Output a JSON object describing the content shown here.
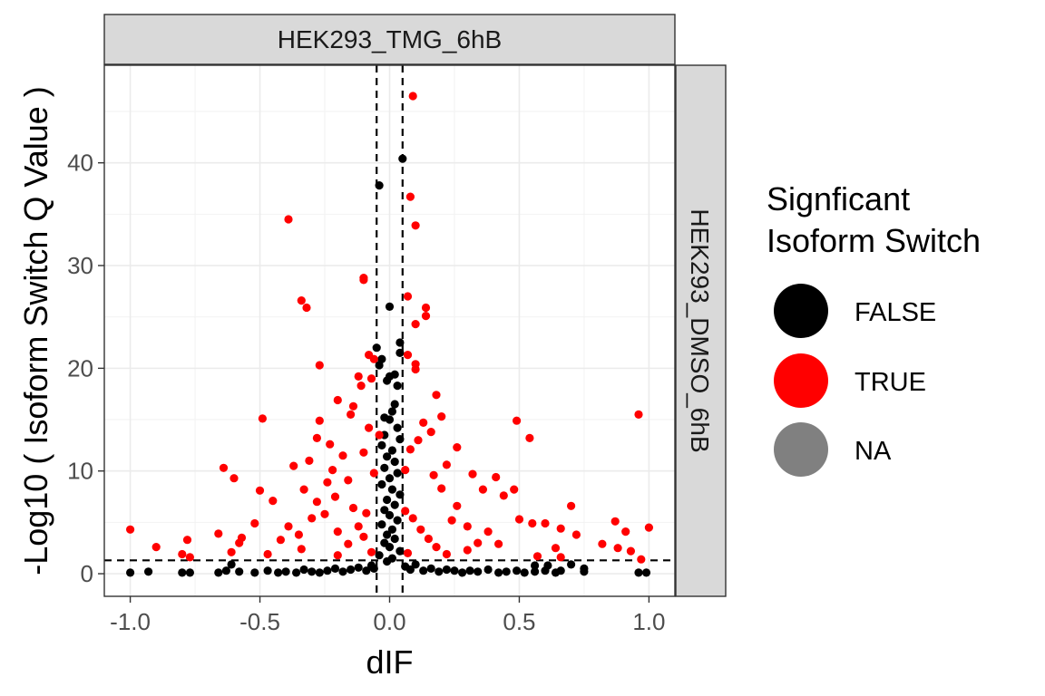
{
  "chart_data": {
    "type": "scatter",
    "facet_top": "HEK293_TMG_6hB",
    "facet_right": "HEK293_DMSO_6hB",
    "xlabel": "dIF",
    "ylabel": "-Log10 ( Isoform Switch Q Value )",
    "xlim": [
      -1.1,
      1.1
    ],
    "ylim": [
      -2.2,
      49.5
    ],
    "x_ticks": [
      -1.0,
      -0.5,
      0.0,
      0.5,
      1.0
    ],
    "x_tick_labels": [
      "-1.0",
      "-0.5",
      "0.0",
      "0.5",
      "1.0"
    ],
    "y_ticks": [
      0,
      10,
      20,
      30,
      40
    ],
    "y_tick_labels": [
      "0",
      "10",
      "20",
      "30",
      "40"
    ],
    "grid": true,
    "threshold_lines": {
      "vertical": [
        -0.05,
        0.05
      ],
      "horizontal": 1.3
    },
    "legend": {
      "title_lines": [
        "Signficant",
        "Isoform Switch"
      ],
      "position": "right",
      "entries": [
        {
          "label": "FALSE",
          "color": "#000000"
        },
        {
          "label": "TRUE",
          "color": "#ff0000"
        },
        {
          "label": "NA",
          "color": "#808080"
        }
      ]
    },
    "series": [
      {
        "name": "FALSE",
        "color": "#000000",
        "points": [
          [
            0.05,
            40.4
          ],
          [
            -0.04,
            37.8
          ],
          [
            0.0,
            26.0
          ],
          [
            0.04,
            22.5
          ],
          [
            -0.05,
            22.0
          ],
          [
            0.04,
            21.5
          ],
          [
            -0.03,
            20.9
          ],
          [
            -0.04,
            20.3
          ],
          [
            0.02,
            19.4
          ],
          [
            0.0,
            19.2
          ],
          [
            -0.01,
            18.8
          ],
          [
            0.03,
            18.3
          ],
          [
            0.02,
            16.5
          ],
          [
            0.01,
            15.8
          ],
          [
            -0.02,
            15.2
          ],
          [
            0.0,
            15.0
          ],
          [
            0.03,
            14.2
          ],
          [
            -0.02,
            13.5
          ],
          [
            0.04,
            13.1
          ],
          [
            -0.03,
            12.5
          ],
          [
            0.01,
            12.0
          ],
          [
            -0.01,
            11.4
          ],
          [
            0.02,
            10.9
          ],
          [
            -0.02,
            10.3
          ],
          [
            0.03,
            9.8
          ],
          [
            0.0,
            9.3
          ],
          [
            -0.03,
            8.7
          ],
          [
            0.01,
            8.2
          ],
          [
            0.04,
            7.7
          ],
          [
            -0.01,
            7.2
          ],
          [
            0.02,
            6.7
          ],
          [
            -0.02,
            6.2
          ],
          [
            0.0,
            5.7
          ],
          [
            0.03,
            5.2
          ],
          [
            -0.03,
            4.8
          ],
          [
            0.01,
            4.3
          ],
          [
            -0.01,
            3.8
          ],
          [
            0.02,
            3.4
          ],
          [
            -0.02,
            3.0
          ],
          [
            0.0,
            2.6
          ],
          [
            0.04,
            2.2
          ],
          [
            -0.04,
            1.8
          ],
          [
            0.01,
            1.5
          ],
          [
            -0.01,
            1.2
          ],
          [
            -1.0,
            0.1
          ],
          [
            -0.93,
            0.2
          ],
          [
            -0.8,
            0.1
          ],
          [
            -0.77,
            0.1
          ],
          [
            -0.66,
            0.1
          ],
          [
            -0.63,
            0.3
          ],
          [
            -0.61,
            0.9
          ],
          [
            -0.58,
            0.2
          ],
          [
            -0.52,
            0.1
          ],
          [
            -0.47,
            0.3
          ],
          [
            -0.43,
            0.1
          ],
          [
            -0.4,
            0.2
          ],
          [
            -0.36,
            0.1
          ],
          [
            -0.33,
            0.4
          ],
          [
            -0.3,
            0.2
          ],
          [
            -0.27,
            0.1
          ],
          [
            -0.24,
            0.3
          ],
          [
            -0.21,
            0.5
          ],
          [
            -0.18,
            0.2
          ],
          [
            -0.15,
            0.4
          ],
          [
            -0.12,
            0.6
          ],
          [
            -0.09,
            0.3
          ],
          [
            -0.07,
            0.8
          ],
          [
            -0.06,
            0.5
          ],
          [
            0.06,
            0.7
          ],
          [
            0.08,
            0.4
          ],
          [
            0.1,
            0.9
          ],
          [
            0.13,
            0.3
          ],
          [
            0.16,
            0.5
          ],
          [
            0.19,
            0.2
          ],
          [
            0.22,
            0.4
          ],
          [
            0.25,
            0.3
          ],
          [
            0.28,
            0.1
          ],
          [
            0.31,
            0.3
          ],
          [
            0.34,
            0.2
          ],
          [
            0.38,
            0.4
          ],
          [
            0.42,
            0.1
          ],
          [
            0.45,
            0.2
          ],
          [
            0.49,
            0.3
          ],
          [
            0.52,
            0.1
          ],
          [
            0.56,
            0.2
          ],
          [
            0.6,
            0.3
          ],
          [
            0.56,
            0.8
          ],
          [
            0.61,
            0.8
          ],
          [
            0.64,
            0.1
          ],
          [
            0.66,
            0.3
          ],
          [
            0.7,
            0.9
          ],
          [
            0.75,
            0.2
          ],
          [
            0.75,
            0.5
          ],
          [
            0.96,
            0.1
          ],
          [
            0.99,
            0.1
          ]
        ]
      },
      {
        "name": "TRUE",
        "color": "#ff0000",
        "points": [
          [
            0.09,
            46.5
          ],
          [
            0.08,
            36.7
          ],
          [
            0.1,
            33.9
          ],
          [
            -0.39,
            34.5
          ],
          [
            -0.1,
            28.8
          ],
          [
            -0.1,
            28.6
          ],
          [
            -0.34,
            26.6
          ],
          [
            -0.32,
            25.9
          ],
          [
            0.07,
            27.0
          ],
          [
            0.14,
            25.9
          ],
          [
            0.14,
            25.1
          ],
          [
            0.1,
            24.3
          ],
          [
            -0.08,
            21.3
          ],
          [
            -0.06,
            20.9
          ],
          [
            0.07,
            21.3
          ],
          [
            0.1,
            20.4
          ],
          [
            -0.27,
            20.3
          ],
          [
            0.1,
            19.9
          ],
          [
            -0.07,
            19.0
          ],
          [
            -0.12,
            19.2
          ],
          [
            -0.11,
            18.3
          ],
          [
            0.18,
            17.4
          ],
          [
            -0.2,
            16.9
          ],
          [
            -0.14,
            16.3
          ],
          [
            -0.15,
            15.5
          ],
          [
            0.2,
            15.3
          ],
          [
            -0.49,
            15.1
          ],
          [
            -0.27,
            14.9
          ],
          [
            0.13,
            14.7
          ],
          [
            -0.08,
            14.2
          ],
          [
            0.16,
            13.8
          ],
          [
            -0.04,
            13.5
          ],
          [
            0.11,
            13.0
          ],
          [
            -0.23,
            12.6
          ],
          [
            0.26,
            12.3
          ],
          [
            0.54,
            13.2
          ],
          [
            0.49,
            14.9
          ],
          [
            -0.28,
            13.2
          ],
          [
            0.96,
            15.5
          ],
          [
            -0.64,
            10.3
          ],
          [
            -0.6,
            9.3
          ],
          [
            -0.37,
            10.5
          ],
          [
            -0.31,
            11.0
          ],
          [
            -0.22,
            10.1
          ],
          [
            -0.18,
            11.5
          ],
          [
            0.22,
            10.6
          ],
          [
            0.32,
            9.7
          ],
          [
            0.36,
            8.2
          ],
          [
            -0.5,
            8.1
          ],
          [
            -0.33,
            8.2
          ],
          [
            -0.24,
            8.9
          ],
          [
            0.41,
            9.4
          ],
          [
            0.44,
            7.6
          ],
          [
            0.48,
            8.2
          ],
          [
            -0.45,
            7.1
          ],
          [
            -0.28,
            7.0
          ],
          [
            0.7,
            6.6
          ],
          [
            0.26,
            6.6
          ],
          [
            0.5,
            5.3
          ],
          [
            0.55,
            4.9
          ],
          [
            0.6,
            4.9
          ],
          [
            0.66,
            4.4
          ],
          [
            -0.52,
            4.9
          ],
          [
            -0.39,
            4.6
          ],
          [
            -0.66,
            3.9
          ],
          [
            -0.57,
            3.5
          ],
          [
            -0.42,
            3.3
          ],
          [
            -0.2,
            4.1
          ],
          [
            -0.3,
            5.4
          ],
          [
            0.3,
            4.6
          ],
          [
            0.38,
            4.1
          ],
          [
            0.87,
            5.1
          ],
          [
            0.72,
            3.8
          ],
          [
            0.91,
            4.1
          ],
          [
            -0.9,
            2.6
          ],
          [
            -0.78,
            3.3
          ],
          [
            -0.8,
            1.9
          ],
          [
            -0.77,
            1.6
          ],
          [
            -0.61,
            2.1
          ],
          [
            -0.47,
            1.9
          ],
          [
            -0.34,
            2.4
          ],
          [
            0.3,
            2.3
          ],
          [
            0.42,
            2.9
          ],
          [
            0.66,
            1.6
          ],
          [
            0.88,
            2.5
          ],
          [
            0.93,
            2.2
          ],
          [
            0.97,
            1.4
          ],
          [
            -1.0,
            4.3
          ],
          [
            1.0,
            4.5
          ],
          [
            -0.14,
            6.4
          ],
          [
            -0.09,
            5.9
          ],
          [
            0.06,
            6.1
          ],
          [
            0.09,
            5.4
          ],
          [
            -0.12,
            4.6
          ],
          [
            0.12,
            4.3
          ],
          [
            -0.1,
            3.6
          ],
          [
            0.15,
            3.4
          ],
          [
            -0.16,
            2.9
          ],
          [
            0.18,
            2.6
          ],
          [
            -0.07,
            2.1
          ],
          [
            0.07,
            2.0
          ],
          [
            -0.21,
            7.5
          ],
          [
            0.2,
            8.3
          ],
          [
            -0.16,
            9.1
          ],
          [
            0.17,
            9.6
          ],
          [
            0.06,
            10.1
          ],
          [
            -0.06,
            9.8
          ],
          [
            0.08,
            12.1
          ],
          [
            -0.1,
            11.8
          ],
          [
            -0.25,
            5.8
          ],
          [
            0.24,
            5.2
          ],
          [
            -0.35,
            3.8
          ],
          [
            0.34,
            3.0
          ],
          [
            -0.2,
            1.8
          ],
          [
            0.22,
            1.9
          ],
          [
            0.57,
            1.7
          ],
          [
            -0.58,
            3.0
          ],
          [
            0.64,
            2.5
          ],
          [
            0.82,
            2.9
          ]
        ]
      }
    ]
  }
}
